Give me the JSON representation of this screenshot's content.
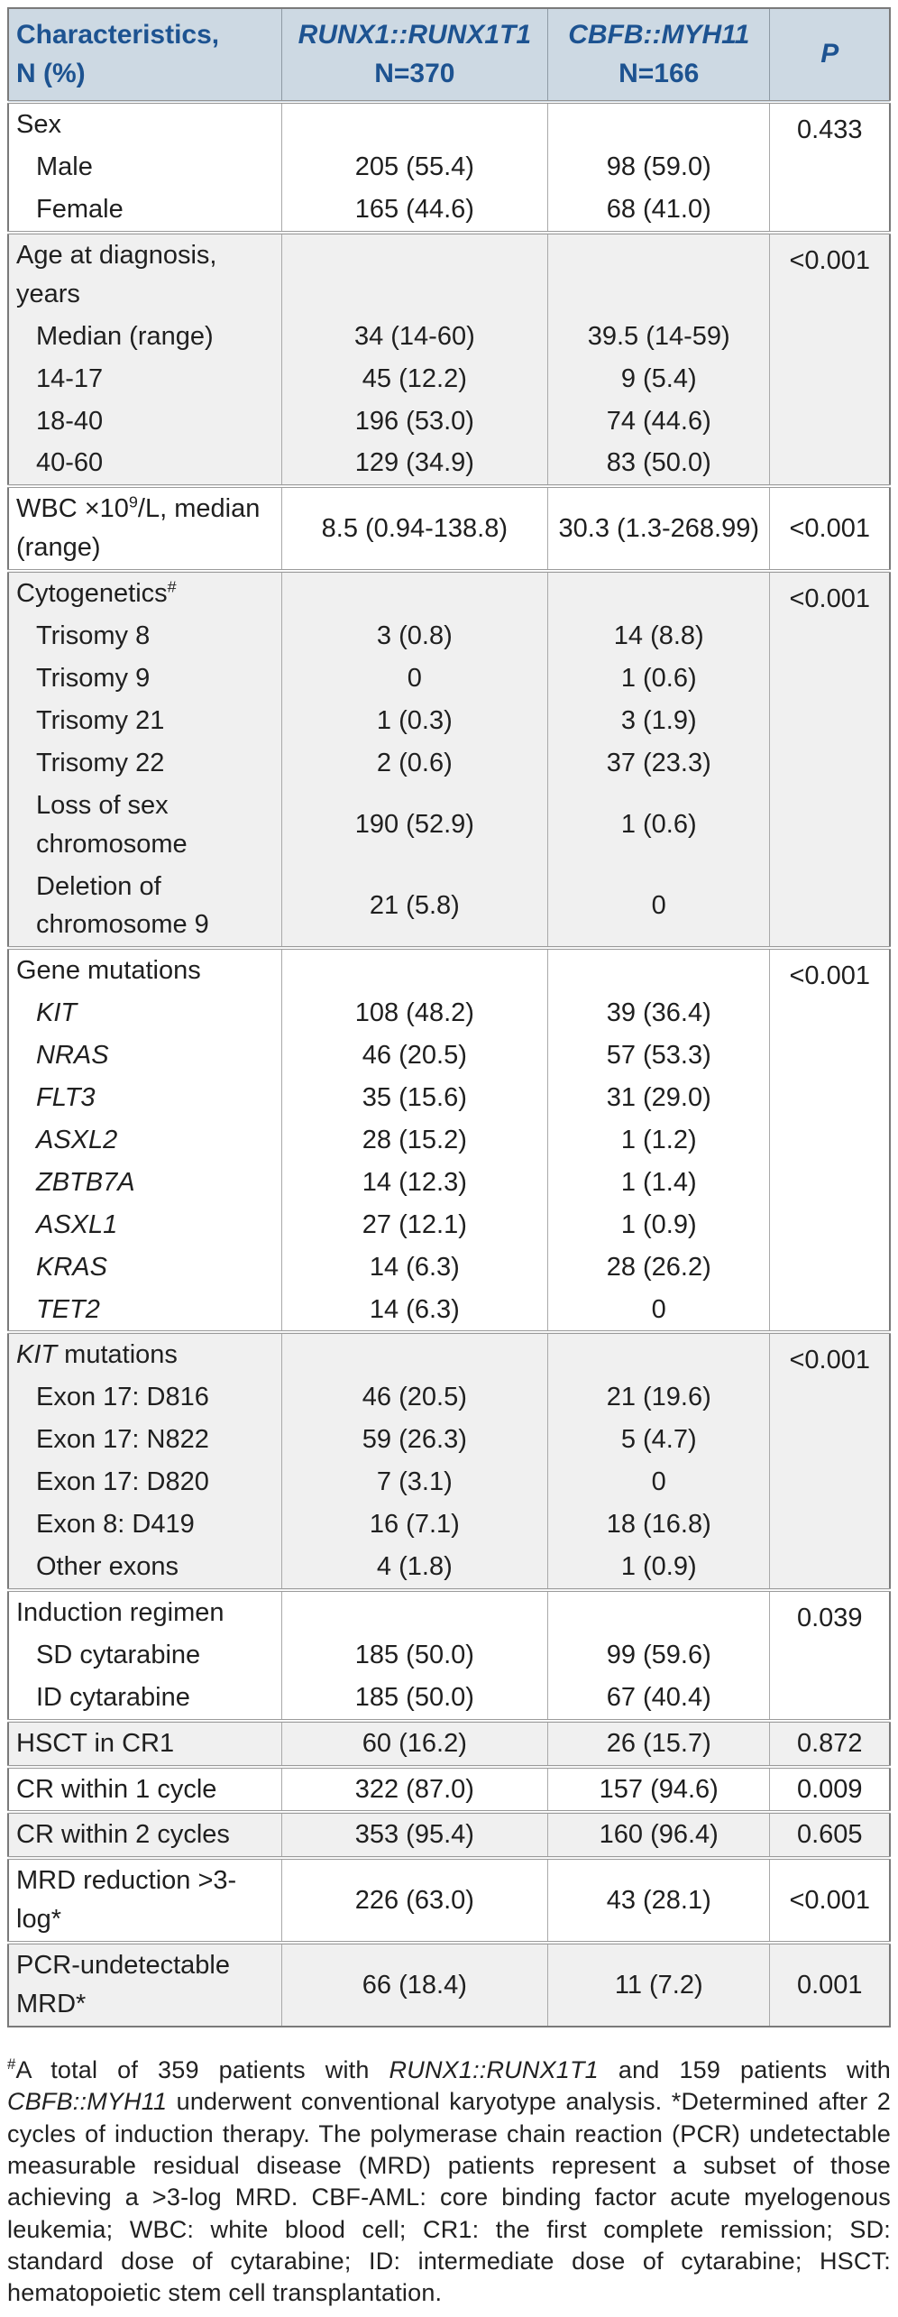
{
  "colors": {
    "header_bg": "#cdd9e3",
    "header_text": "#1d5391",
    "section_grey_bg": "#f0f0f0",
    "section_white_bg": "#ffffff",
    "body_text": "#1f1f1f",
    "border_outer": "#7a7a7a",
    "border_inner": "#a9a9a9"
  },
  "table": {
    "header": {
      "col1": {
        "line1": "Characteristics,",
        "line2": "N (%)"
      },
      "col2": {
        "line1": "RUNX1::RUNX1T1",
        "line2": "N=370"
      },
      "col3": {
        "line1": "CBFB::MYH11",
        "line2": "N=166"
      },
      "col4": "P"
    },
    "sections": [
      {
        "bg": "white",
        "p": "0.433",
        "rows": [
          {
            "seg": [
              {
                "t": "Sex"
              }
            ],
            "head": true
          },
          {
            "seg": [
              {
                "t": "Male"
              }
            ],
            "ind": true,
            "v1": "205 (55.4)",
            "v2": "98 (59.0)"
          },
          {
            "seg": [
              {
                "t": "Female"
              }
            ],
            "ind": true,
            "v1": "165 (44.6)",
            "v2": "68 (41.0)"
          }
        ]
      },
      {
        "bg": "grey",
        "p": "<0.001",
        "rows": [
          {
            "seg": [
              {
                "t": "Age at diagnosis, years"
              }
            ],
            "head": true
          },
          {
            "seg": [
              {
                "t": "Median (range)"
              }
            ],
            "ind": true,
            "v1": "34 (14-60)",
            "v2": "39.5 (14-59)"
          },
          {
            "seg": [
              {
                "t": "14-17"
              }
            ],
            "ind": true,
            "v1": "45 (12.2)",
            "v2": "9 (5.4)"
          },
          {
            "seg": [
              {
                "t": "18-40"
              }
            ],
            "ind": true,
            "v1": "196 (53.0)",
            "v2": "74 (44.6)"
          },
          {
            "seg": [
              {
                "t": "40-60"
              }
            ],
            "ind": true,
            "v1": "129 (34.9)",
            "v2": "83 (50.0)"
          }
        ]
      },
      {
        "bg": "white",
        "p": "<0.001",
        "rows": [
          {
            "seg": [
              {
                "t": "WBC ×10"
              },
              {
                "t": "9",
                "sup": true
              },
              {
                "t": "/L, median (range)"
              }
            ],
            "v1": "8.5 (0.94-138.8)",
            "v2": "30.3 (1.3-268.99)"
          }
        ]
      },
      {
        "bg": "grey",
        "p": "<0.001",
        "rows": [
          {
            "seg": [
              {
                "t": "Cytogenetics"
              },
              {
                "t": "#",
                "sup": true
              }
            ],
            "head": true
          },
          {
            "seg": [
              {
                "t": "Trisomy 8"
              }
            ],
            "ind": true,
            "v1": "3 (0.8)",
            "v2": "14 (8.8)"
          },
          {
            "seg": [
              {
                "t": "Trisomy 9"
              }
            ],
            "ind": true,
            "v1": "0",
            "v2": "1 (0.6)"
          },
          {
            "seg": [
              {
                "t": "Trisomy 21"
              }
            ],
            "ind": true,
            "v1": "1 (0.3)",
            "v2": "3 (1.9)"
          },
          {
            "seg": [
              {
                "t": "Trisomy 22"
              }
            ],
            "ind": true,
            "v1": "2 (0.6)",
            "v2": "37 (23.3)"
          },
          {
            "seg": [
              {
                "t": "Loss of sex chromosome"
              }
            ],
            "ind": true,
            "v1": "190 (52.9)",
            "v2": "1 (0.6)"
          },
          {
            "seg": [
              {
                "t": "Deletion of chromosome 9"
              }
            ],
            "ind": true,
            "v1": "21 (5.8)",
            "v2": "0"
          }
        ]
      },
      {
        "bg": "white",
        "p": "<0.001",
        "rows": [
          {
            "seg": [
              {
                "t": "Gene mutations"
              }
            ],
            "head": true
          },
          {
            "seg": [
              {
                "t": "KIT",
                "i": true
              }
            ],
            "ind": true,
            "v1": "108 (48.2)",
            "v2": "39 (36.4)"
          },
          {
            "seg": [
              {
                "t": "NRAS",
                "i": true
              }
            ],
            "ind": true,
            "v1": "46 (20.5)",
            "v2": "57 (53.3)"
          },
          {
            "seg": [
              {
                "t": "FLT3",
                "i": true
              }
            ],
            "ind": true,
            "v1": "35 (15.6)",
            "v2": "31 (29.0)"
          },
          {
            "seg": [
              {
                "t": "ASXL2",
                "i": true
              }
            ],
            "ind": true,
            "v1": "28 (15.2)",
            "v2": "1 (1.2)"
          },
          {
            "seg": [
              {
                "t": "ZBTB7A",
                "i": true
              }
            ],
            "ind": true,
            "v1": "14 (12.3)",
            "v2": "1 (1.4)"
          },
          {
            "seg": [
              {
                "t": "ASXL1",
                "i": true
              }
            ],
            "ind": true,
            "v1": "27 (12.1)",
            "v2": "1 (0.9)"
          },
          {
            "seg": [
              {
                "t": "KRAS",
                "i": true
              }
            ],
            "ind": true,
            "v1": "14 (6.3)",
            "v2": "28 (26.2)"
          },
          {
            "seg": [
              {
                "t": "TET2",
                "i": true
              }
            ],
            "ind": true,
            "v1": "14 (6.3)",
            "v2": "0"
          }
        ]
      },
      {
        "bg": "grey",
        "p": "<0.001",
        "rows": [
          {
            "seg": [
              {
                "t": "KIT",
                "i": true
              },
              {
                "t": " mutations"
              }
            ],
            "head": true
          },
          {
            "seg": [
              {
                "t": "Exon 17: D816"
              }
            ],
            "ind": true,
            "v1": "46 (20.5)",
            "v2": "21 (19.6)"
          },
          {
            "seg": [
              {
                "t": "Exon 17: N822"
              }
            ],
            "ind": true,
            "v1": "59 (26.3)",
            "v2": "5 (4.7)"
          },
          {
            "seg": [
              {
                "t": "Exon 17: D820"
              }
            ],
            "ind": true,
            "v1": "7 (3.1)",
            "v2": "0"
          },
          {
            "seg": [
              {
                "t": "Exon 8: D419"
              }
            ],
            "ind": true,
            "v1": "16 (7.1)",
            "v2": "18 (16.8)"
          },
          {
            "seg": [
              {
                "t": "Other exons"
              }
            ],
            "ind": true,
            "v1": "4 (1.8)",
            "v2": "1 (0.9)"
          }
        ]
      },
      {
        "bg": "white",
        "p": "0.039",
        "rows": [
          {
            "seg": [
              {
                "t": "Induction regimen"
              }
            ],
            "head": true
          },
          {
            "seg": [
              {
                "t": "SD cytarabine"
              }
            ],
            "ind": true,
            "v1": "185 (50.0)",
            "v2": "99 (59.6)"
          },
          {
            "seg": [
              {
                "t": "ID cytarabine"
              }
            ],
            "ind": true,
            "v1": "185 (50.0)",
            "v2": "67 (40.4)"
          }
        ]
      },
      {
        "bg": "grey",
        "p": "0.872",
        "rows": [
          {
            "seg": [
              {
                "t": "HSCT in CR1"
              }
            ],
            "v1": "60 (16.2)",
            "v2": "26 (15.7)"
          }
        ]
      },
      {
        "bg": "white",
        "p": "0.009",
        "rows": [
          {
            "seg": [
              {
                "t": "CR within 1 cycle"
              }
            ],
            "v1": "322 (87.0)",
            "v2": "157 (94.6)"
          }
        ]
      },
      {
        "bg": "grey",
        "p": "0.605",
        "rows": [
          {
            "seg": [
              {
                "t": "CR within 2 cycles"
              }
            ],
            "v1": "353 (95.4)",
            "v2": "160 (96.4)"
          }
        ]
      },
      {
        "bg": "white",
        "p": "<0.001",
        "rows": [
          {
            "seg": [
              {
                "t": "MRD reduction >3-log*"
              }
            ],
            "v1": "226 (63.0)",
            "v2": "43 (28.1)"
          }
        ]
      },
      {
        "bg": "grey",
        "p": "0.001",
        "rows": [
          {
            "seg": [
              {
                "t": "PCR-undetectable MRD*"
              }
            ],
            "v1": "66 (18.4)",
            "v2": "11 (7.2)"
          }
        ]
      }
    ]
  },
  "footnote": {
    "segments": [
      {
        "t": "#",
        "sup": true
      },
      {
        "t": "A total of 359 patients with "
      },
      {
        "t": "RUNX1::RUNX1T1",
        "i": true
      },
      {
        "t": " and 159 patients with "
      },
      {
        "t": "CBFB::MYH11",
        "i": true
      },
      {
        "t": " underwent conventional karyotype analysis. *Determined after 2 cycles of induction therapy. The polymerase chain reaction (PCR) undetectable measurable residual disease (MRD) patients represent a subset of those achieving a >3-log MRD. CBF-AML: core binding factor acute myelogenous leukemia; WBC: white blood cell; CR1: the first complete remission; SD: standard dose of cytarabine; ID: intermediate dose of cytarabine; HSCT: hematopoietic stem cell transplantation."
      }
    ]
  }
}
